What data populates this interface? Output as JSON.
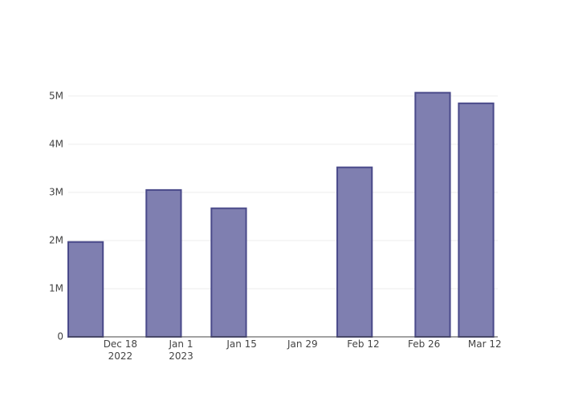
{
  "chart_data": {
    "type": "bar",
    "x": [
      "2022-12-10",
      "2022-12-28",
      "2023-01-12",
      "2023-02-10",
      "2023-02-28",
      "2023-03-10"
    ],
    "values": [
      1970000,
      3050000,
      2670000,
      3520000,
      5070000,
      4850000
    ],
    "color": "#7f7fb0",
    "line_color": "#4a4a8a",
    "xlim": [
      "2022-12-06",
      "2023-03-15"
    ],
    "xticks": [
      {
        "value": "2022-12-18",
        "label": "Dec 18\n2022"
      },
      {
        "value": "2023-01-01",
        "label": "Jan 1\n2023"
      },
      {
        "value": "2023-01-15",
        "label": "Jan 15"
      },
      {
        "value": "2023-01-29",
        "label": "Jan 29"
      },
      {
        "value": "2023-02-12",
        "label": "Feb 12"
      },
      {
        "value": "2023-02-26",
        "label": "Feb 26"
      },
      {
        "value": "2023-03-12",
        "label": "Mar 12"
      }
    ],
    "ylim": [
      0,
      5330000
    ],
    "yticks": [
      0,
      {
        "value": 1000000,
        "label": "1M"
      },
      {
        "value": 2000000,
        "label": "2M"
      },
      {
        "value": 3000000,
        "label": "3M"
      },
      {
        "value": 4000000,
        "label": "4M"
      },
      {
        "value": 5000000,
        "label": "5M"
      }
    ],
    "grid": true
  }
}
